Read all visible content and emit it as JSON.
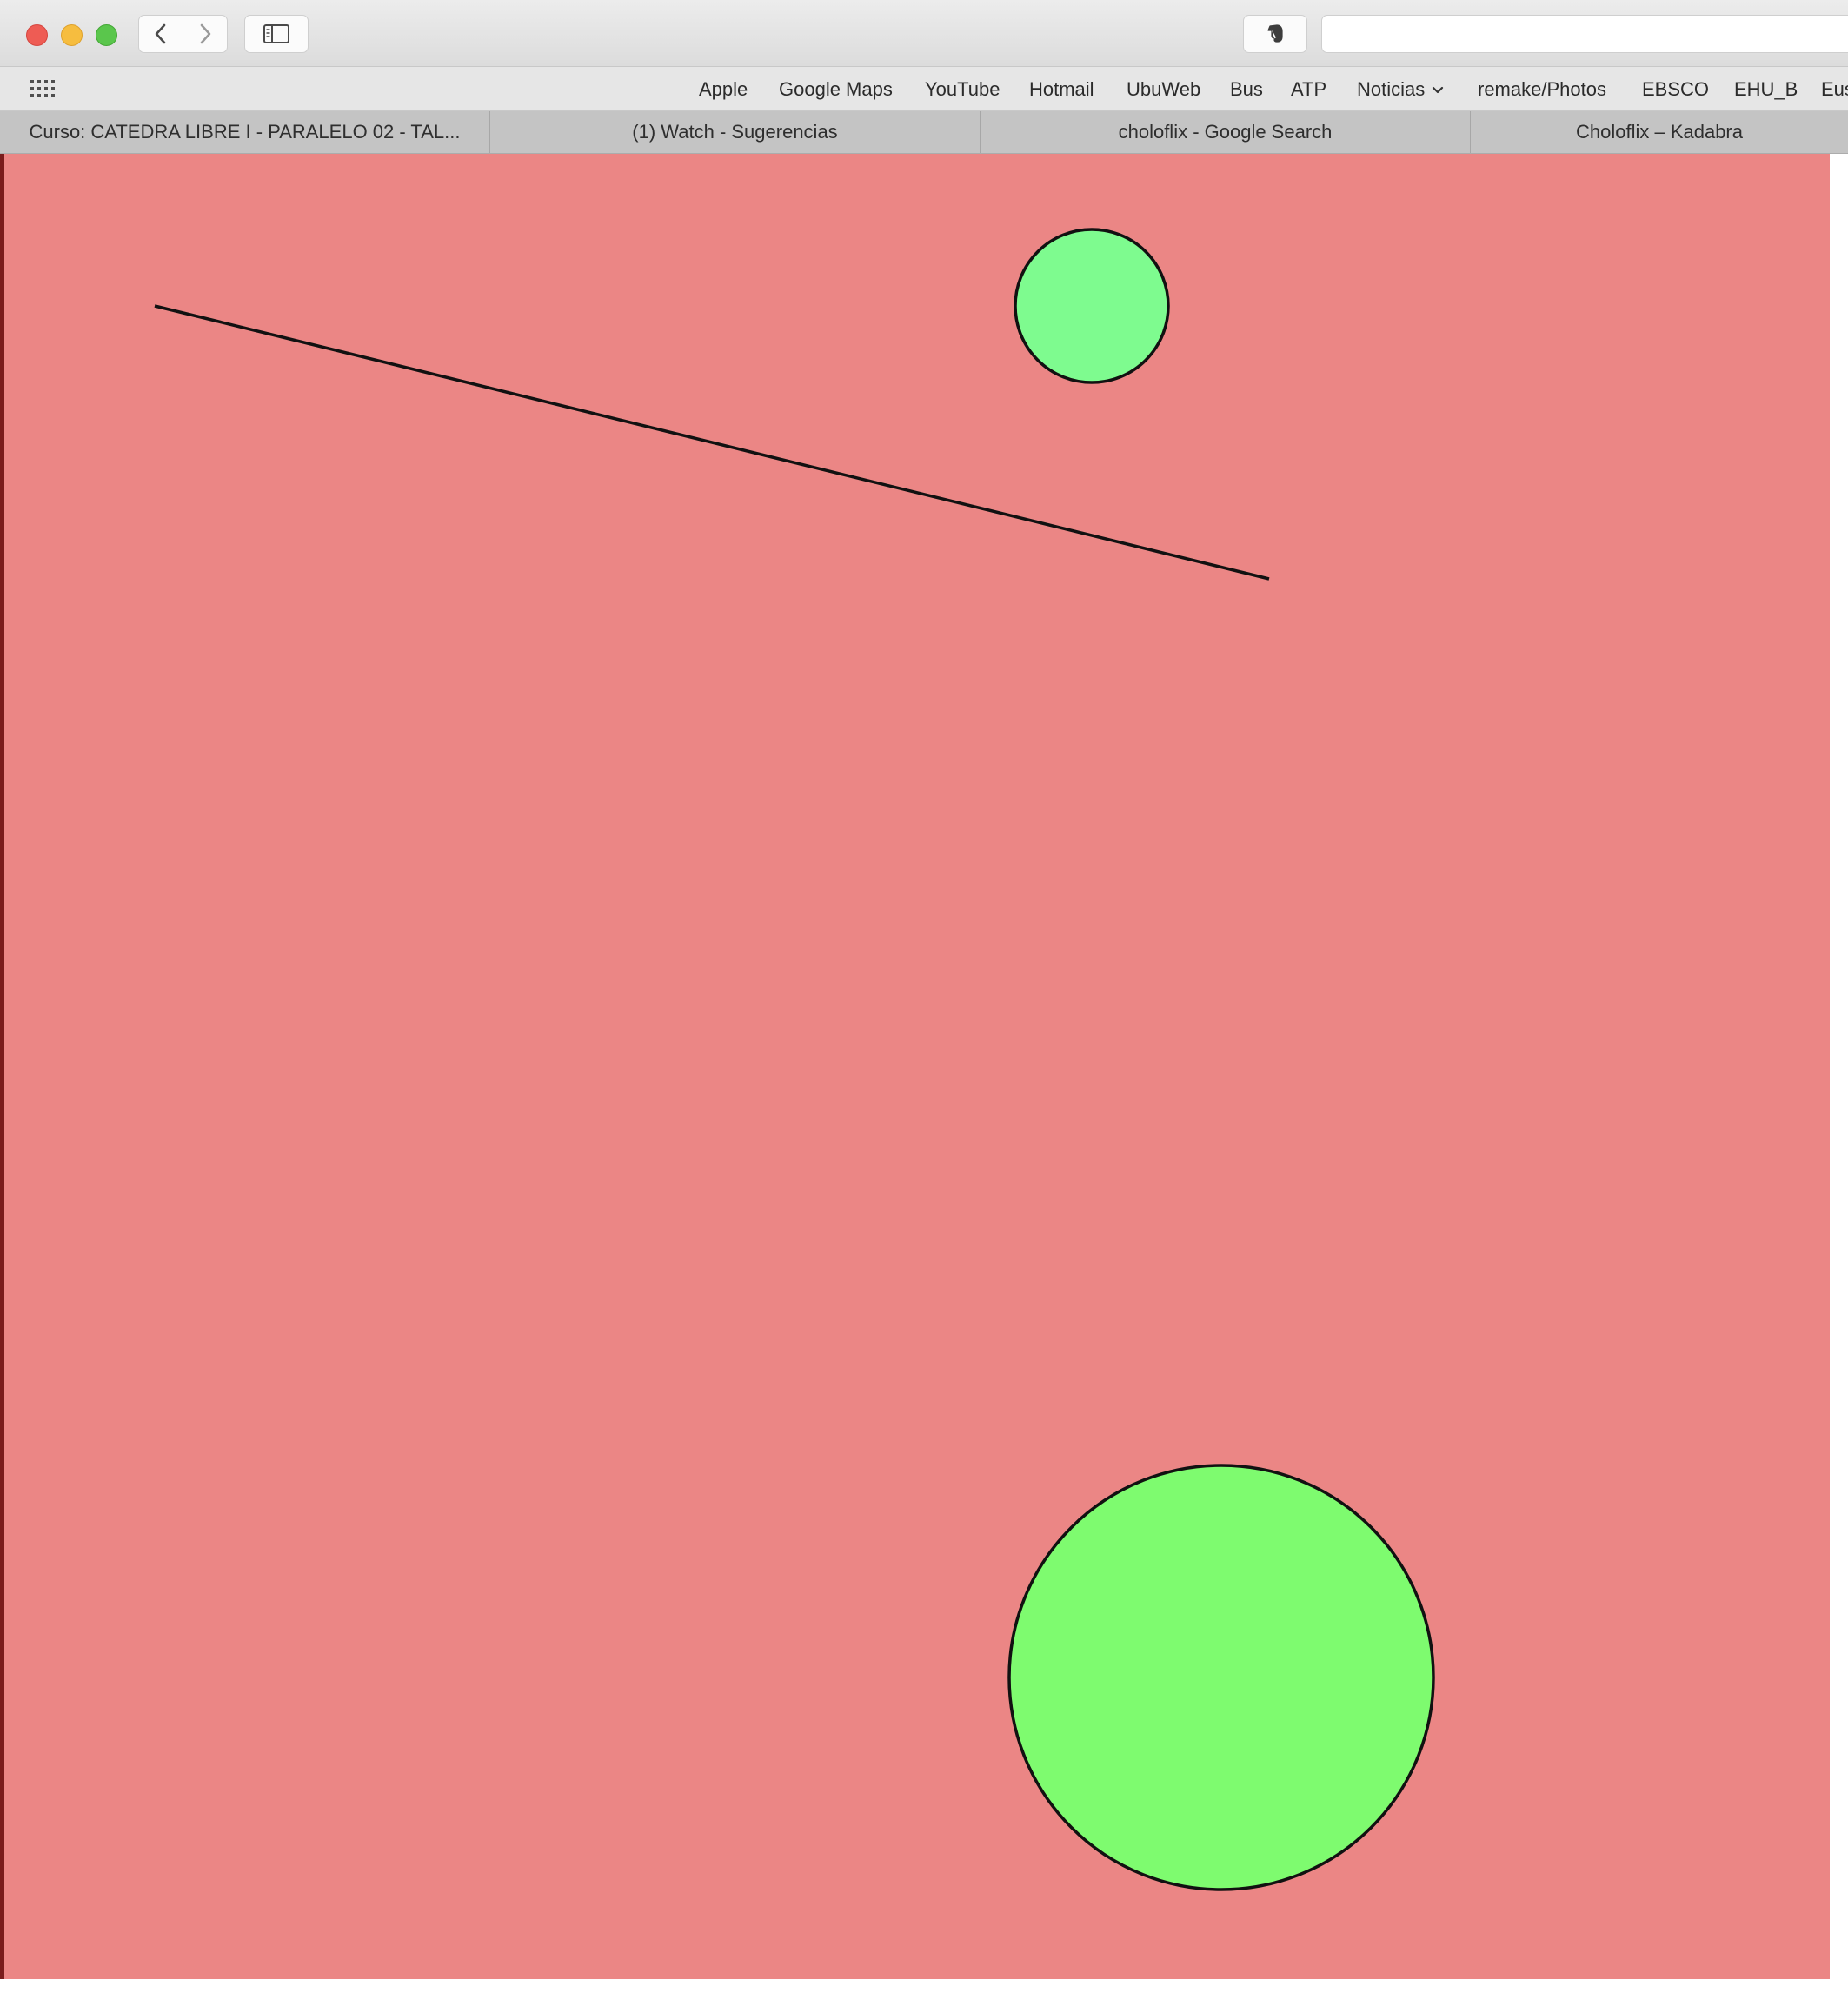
{
  "toolbar": {
    "buttons": {
      "back_icon": "chevron-left-icon",
      "forward_icon": "chevron-right-icon",
      "sidebar_icon": "sidebar-icon",
      "extension_icon": "evernote-elephant-icon"
    },
    "address_value": ""
  },
  "bookmarks": {
    "items": [
      {
        "label": "Apple"
      },
      {
        "label": "Google Maps"
      },
      {
        "label": "YouTube"
      },
      {
        "label": "Hotmail"
      },
      {
        "label": "UbuWeb"
      },
      {
        "label": "Bus"
      },
      {
        "label": "ATP"
      },
      {
        "label": "Noticias"
      },
      {
        "label": "remake/Photos"
      },
      {
        "label": "EBSCO"
      },
      {
        "label": "EHU_B"
      },
      {
        "label": "Eus"
      }
    ]
  },
  "tabs": [
    {
      "label": "Curso: CATEDRA LIBRE I - PARALELO 02 - TAL..."
    },
    {
      "label": "(1) Watch - Sugerencias"
    },
    {
      "label": "choloflix - Google Search"
    },
    {
      "label": "Choloflix – Kadabra"
    }
  ],
  "sketch": {
    "background_color": "#eb8685",
    "circle_fill_small": "#7efb8f",
    "circle_fill_large": "#7efb6f",
    "stroke_color": "#111111"
  }
}
